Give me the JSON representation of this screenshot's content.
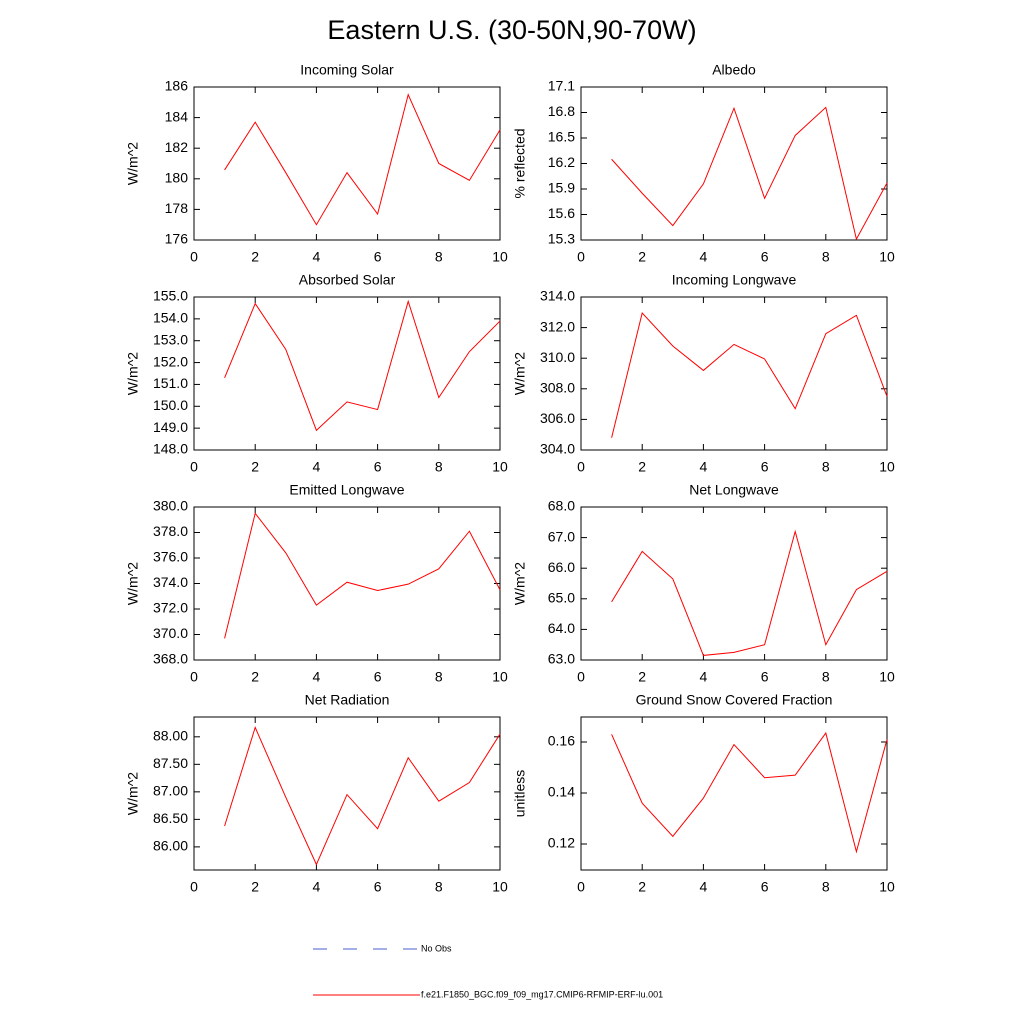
{
  "title": "Eastern U.S. (30-50N,90-70W)",
  "legend": [
    {
      "name": "No Obs",
      "color": "#4b5fcf",
      "dashed": true
    },
    {
      "name": "f.e21.F1850_BGC.f09_f09_mg17.CMIP6-RFMIP-ERF-lu.001",
      "color": "#ff0000",
      "dashed": false
    }
  ],
  "chart_data": [
    {
      "type": "line",
      "title": "Incoming Solar",
      "y_label": "W/m^2",
      "color": "#ff0000",
      "x": [
        1,
        2,
        3,
        4,
        5,
        6,
        7,
        8,
        9,
        10
      ],
      "values": [
        180.58,
        183.7,
        180.4,
        177.0,
        180.4,
        177.7,
        185.5,
        181.0,
        179.9,
        183.2
      ],
      "xlim": [
        0,
        10
      ],
      "xticks": [
        0,
        2,
        4,
        6,
        8,
        10
      ],
      "ylim": [
        176,
        186
      ],
      "yticks": [
        176,
        178,
        180,
        182,
        184,
        186
      ]
    },
    {
      "type": "line",
      "title": "Albedo",
      "y_label": "% reflected",
      "color": "#ff0000",
      "x": [
        1,
        2,
        3,
        4,
        5,
        6,
        7,
        8,
        9,
        10
      ],
      "values": [
        16.25,
        15.85,
        15.47,
        15.96,
        16.85,
        15.79,
        16.53,
        16.86,
        15.31,
        15.97
      ],
      "xlim": [
        0,
        10
      ],
      "xticks": [
        0,
        2,
        4,
        6,
        8,
        10
      ],
      "ylim": [
        15.3,
        17.1
      ],
      "yticks": [
        15.3,
        15.6,
        15.9,
        16.2,
        16.5,
        16.8,
        17.1
      ]
    },
    {
      "type": "line",
      "title": "Absorbed Solar",
      "y_label": "W/m^2",
      "color": "#ff0000",
      "x": [
        1,
        2,
        3,
        4,
        5,
        6,
        7,
        8,
        9,
        10
      ],
      "values": [
        151.3,
        154.7,
        152.6,
        148.9,
        150.2,
        149.85,
        154.8,
        150.4,
        152.5,
        153.9
      ],
      "xlim": [
        0,
        10
      ],
      "xticks": [
        0,
        2,
        4,
        6,
        8,
        10
      ],
      "ylim": [
        148,
        155
      ],
      "yticks": [
        {
          "value": 148,
          "label": "148.0"
        },
        {
          "value": 149,
          "label": "149.0"
        },
        {
          "value": 150,
          "label": "150.0"
        },
        {
          "value": 151,
          "label": "151.0"
        },
        {
          "value": 152,
          "label": "152.0"
        },
        {
          "value": 153,
          "label": "153.0"
        },
        {
          "value": 154,
          "label": "154.0"
        },
        {
          "value": 155,
          "label": "155.0"
        }
      ]
    },
    {
      "type": "line",
      "title": "Incoming Longwave",
      "y_label": "W/m^2",
      "color": "#ff0000",
      "x": [
        1,
        2,
        3,
        4,
        5,
        6,
        7,
        8,
        9,
        10
      ],
      "values": [
        304.8,
        312.95,
        310.8,
        309.2,
        310.9,
        309.95,
        306.7,
        311.6,
        312.8,
        307.5
      ],
      "xlim": [
        0,
        10
      ],
      "xticks": [
        0,
        2,
        4,
        6,
        8,
        10
      ],
      "ylim": [
        304,
        314
      ],
      "yticks": [
        {
          "value": 304,
          "label": "304.0"
        },
        {
          "value": 306,
          "label": "306.0"
        },
        {
          "value": 308,
          "label": "308.0"
        },
        {
          "value": 310,
          "label": "310.0"
        },
        {
          "value": 312,
          "label": "312.0"
        },
        {
          "value": 314,
          "label": "314.0"
        }
      ]
    },
    {
      "type": "line",
      "title": "Emitted Longwave",
      "y_label": "W/m^2",
      "color": "#ff0000",
      "x": [
        1,
        2,
        3,
        4,
        5,
        6,
        7,
        8,
        9,
        10
      ],
      "values": [
        369.7,
        379.5,
        376.4,
        372.3,
        374.1,
        373.45,
        373.95,
        375.15,
        378.1,
        373.5
      ],
      "xlim": [
        0,
        10
      ],
      "xticks": [
        0,
        2,
        4,
        6,
        8,
        10
      ],
      "ylim": [
        368,
        380
      ],
      "yticks": [
        {
          "value": 368,
          "label": "368.0"
        },
        {
          "value": 370,
          "label": "370.0"
        },
        {
          "value": 372,
          "label": "372.0"
        },
        {
          "value": 374,
          "label": "374.0"
        },
        {
          "value": 376,
          "label": "376.0"
        },
        {
          "value": 378,
          "label": "378.0"
        },
        {
          "value": 380,
          "label": "380.0"
        }
      ]
    },
    {
      "type": "line",
      "title": "Net Longwave",
      "y_label": "W/m^2",
      "color": "#ff0000",
      "x": [
        1,
        2,
        3,
        4,
        5,
        6,
        7,
        8,
        9,
        10
      ],
      "values": [
        64.9,
        66.55,
        65.65,
        63.15,
        63.25,
        63.5,
        67.2,
        63.5,
        65.3,
        65.9
      ],
      "xlim": [
        0,
        10
      ],
      "xticks": [
        0,
        2,
        4,
        6,
        8,
        10
      ],
      "ylim": [
        63,
        68
      ],
      "yticks": [
        {
          "value": 63,
          "label": "63.0"
        },
        {
          "value": 64,
          "label": "64.0"
        },
        {
          "value": 65,
          "label": "65.0"
        },
        {
          "value": 66,
          "label": "66.0"
        },
        {
          "value": 67,
          "label": "67.0"
        },
        {
          "value": 68,
          "label": "68.0"
        }
      ]
    },
    {
      "type": "line",
      "title": "Net Radiation",
      "y_label": "W/m^2",
      "color": "#ff0000",
      "x": [
        1,
        2,
        3,
        4,
        5,
        6,
        7,
        8,
        9,
        10
      ],
      "values": [
        86.38,
        88.17,
        86.9,
        85.68,
        86.95,
        86.33,
        87.62,
        86.83,
        87.17,
        88.05
      ],
      "xlim": [
        0,
        10
      ],
      "xticks": [
        0,
        2,
        4,
        6,
        8,
        10
      ],
      "ylim": [
        85.58,
        88.36
      ],
      "yticks": [
        {
          "value": 86,
          "label": "86.00"
        },
        {
          "value": 86.5,
          "label": "86.50"
        },
        {
          "value": 87,
          "label": "87.00"
        },
        {
          "value": 87.5,
          "label": "87.50"
        },
        {
          "value": 88,
          "label": "88.00"
        }
      ]
    },
    {
      "type": "line",
      "title": "Ground Snow Covered Fraction",
      "y_label": "unitless",
      "color": "#ff0000",
      "x": [
        1,
        2,
        3,
        4,
        5,
        6,
        7,
        8,
        9,
        10
      ],
      "values": [
        0.163,
        0.136,
        0.123,
        0.138,
        0.159,
        0.146,
        0.147,
        0.1635,
        0.117,
        0.161
      ],
      "xlim": [
        0,
        10
      ],
      "xticks": [
        0,
        2,
        4,
        6,
        8,
        10
      ],
      "ylim": [
        0.1098,
        0.1698
      ],
      "yticks": [
        0.12,
        0.14,
        0.16
      ]
    }
  ]
}
